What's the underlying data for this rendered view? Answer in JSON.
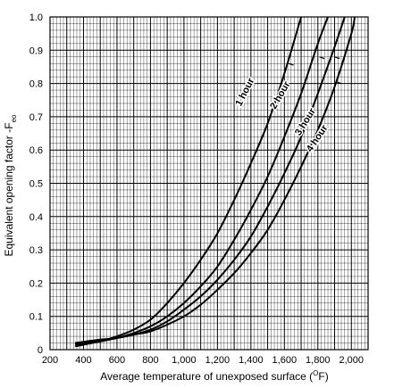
{
  "chart_data": {
    "type": "line",
    "xlabel_main": "Average temperature of unexposed surface (",
    "xlabel_sup": "O",
    "xlabel_end": "F)",
    "ylabel_main": "Equivalent opening factor -F",
    "ylabel_sub": "eo",
    "xlim": [
      200,
      2100
    ],
    "ylim": [
      0,
      1.0
    ],
    "x_tick_labels": [
      "200",
      "400",
      "600",
      "800",
      "1,000",
      "1,200",
      "1,400",
      "1,600",
      "1,800",
      "2,000"
    ],
    "y_tick_labels": [
      "0",
      "0.1",
      "0.2",
      "0.3",
      "0.4",
      "0.5",
      "0.6",
      "0.7",
      "0.8",
      "0.9",
      "1.0"
    ],
    "grid": true,
    "series": [
      {
        "name": "1 hour",
        "x": [
          350,
          500,
          600,
          700,
          800,
          900,
          1000,
          1100,
          1200,
          1300,
          1400,
          1500,
          1600,
          1700
        ],
        "y": [
          0.01,
          0.025,
          0.04,
          0.06,
          0.09,
          0.14,
          0.2,
          0.27,
          0.35,
          0.45,
          0.56,
          0.68,
          0.83,
          1.0
        ]
      },
      {
        "name": "2 hour",
        "x": [
          350,
          500,
          600,
          700,
          800,
          900,
          1000,
          1100,
          1200,
          1300,
          1400,
          1500,
          1600,
          1700,
          1800,
          1860
        ],
        "y": [
          0.015,
          0.025,
          0.035,
          0.05,
          0.07,
          0.1,
          0.14,
          0.19,
          0.25,
          0.33,
          0.42,
          0.52,
          0.64,
          0.77,
          0.92,
          1.0
        ]
      },
      {
        "name": "3 hour",
        "x": [
          350,
          500,
          600,
          700,
          800,
          900,
          1000,
          1100,
          1200,
          1300,
          1400,
          1500,
          1600,
          1700,
          1800,
          1900,
          1960
        ],
        "y": [
          0.018,
          0.028,
          0.035,
          0.045,
          0.06,
          0.085,
          0.12,
          0.16,
          0.21,
          0.27,
          0.34,
          0.43,
          0.53,
          0.64,
          0.77,
          0.91,
          1.0
        ]
      },
      {
        "name": "4 hour",
        "x": [
          350,
          500,
          600,
          700,
          800,
          900,
          1000,
          1100,
          1200,
          1300,
          1400,
          1500,
          1600,
          1700,
          1800,
          1900,
          2000,
          2020
        ],
        "y": [
          0.02,
          0.03,
          0.035,
          0.045,
          0.055,
          0.075,
          0.1,
          0.135,
          0.18,
          0.23,
          0.29,
          0.36,
          0.45,
          0.55,
          0.66,
          0.79,
          0.95,
          1.0
        ]
      }
    ],
    "curve_labels": [
      "1 hour",
      "2 hour",
      "3 hour",
      "4 hour"
    ]
  }
}
